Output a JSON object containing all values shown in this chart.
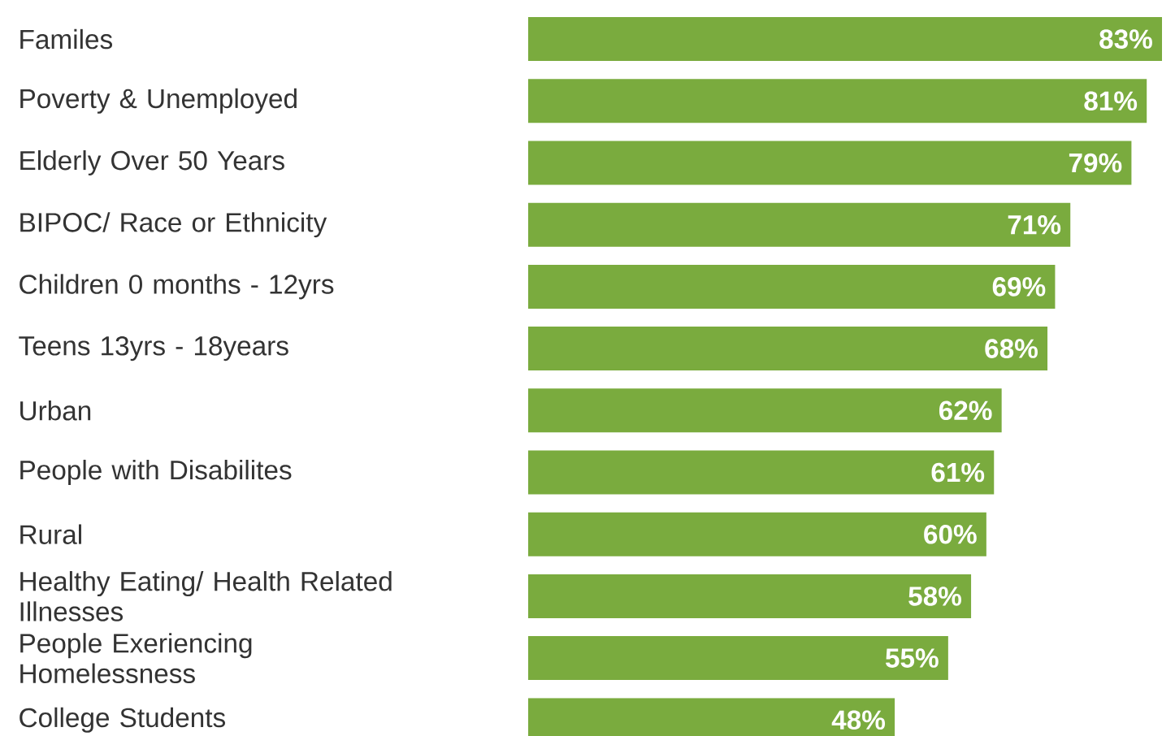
{
  "chart_data": {
    "type": "bar",
    "orientation": "horizontal",
    "color": "#7aab3e",
    "categories": [
      "Familes",
      "Poverty & Unemployed",
      "Elderly Over 50 Years",
      "BIPOC/ Race or Ethnicity",
      "Children 0 months - 12yrs",
      "Teens 13yrs - 18years",
      "Urban",
      "People with Disabilites",
      "Rural",
      "Healthy Eating/ Health Related Illnesses",
      "People Exeriencing Homelessness",
      "College Students"
    ],
    "values": [
      83,
      81,
      79,
      71,
      69,
      68,
      62,
      61,
      60,
      58,
      55,
      48
    ],
    "value_labels": [
      "83%",
      "81%",
      "79%",
      "71%",
      "69%",
      "68%",
      "62%",
      "61%",
      "60%",
      "58%",
      "55%",
      "48%"
    ]
  }
}
